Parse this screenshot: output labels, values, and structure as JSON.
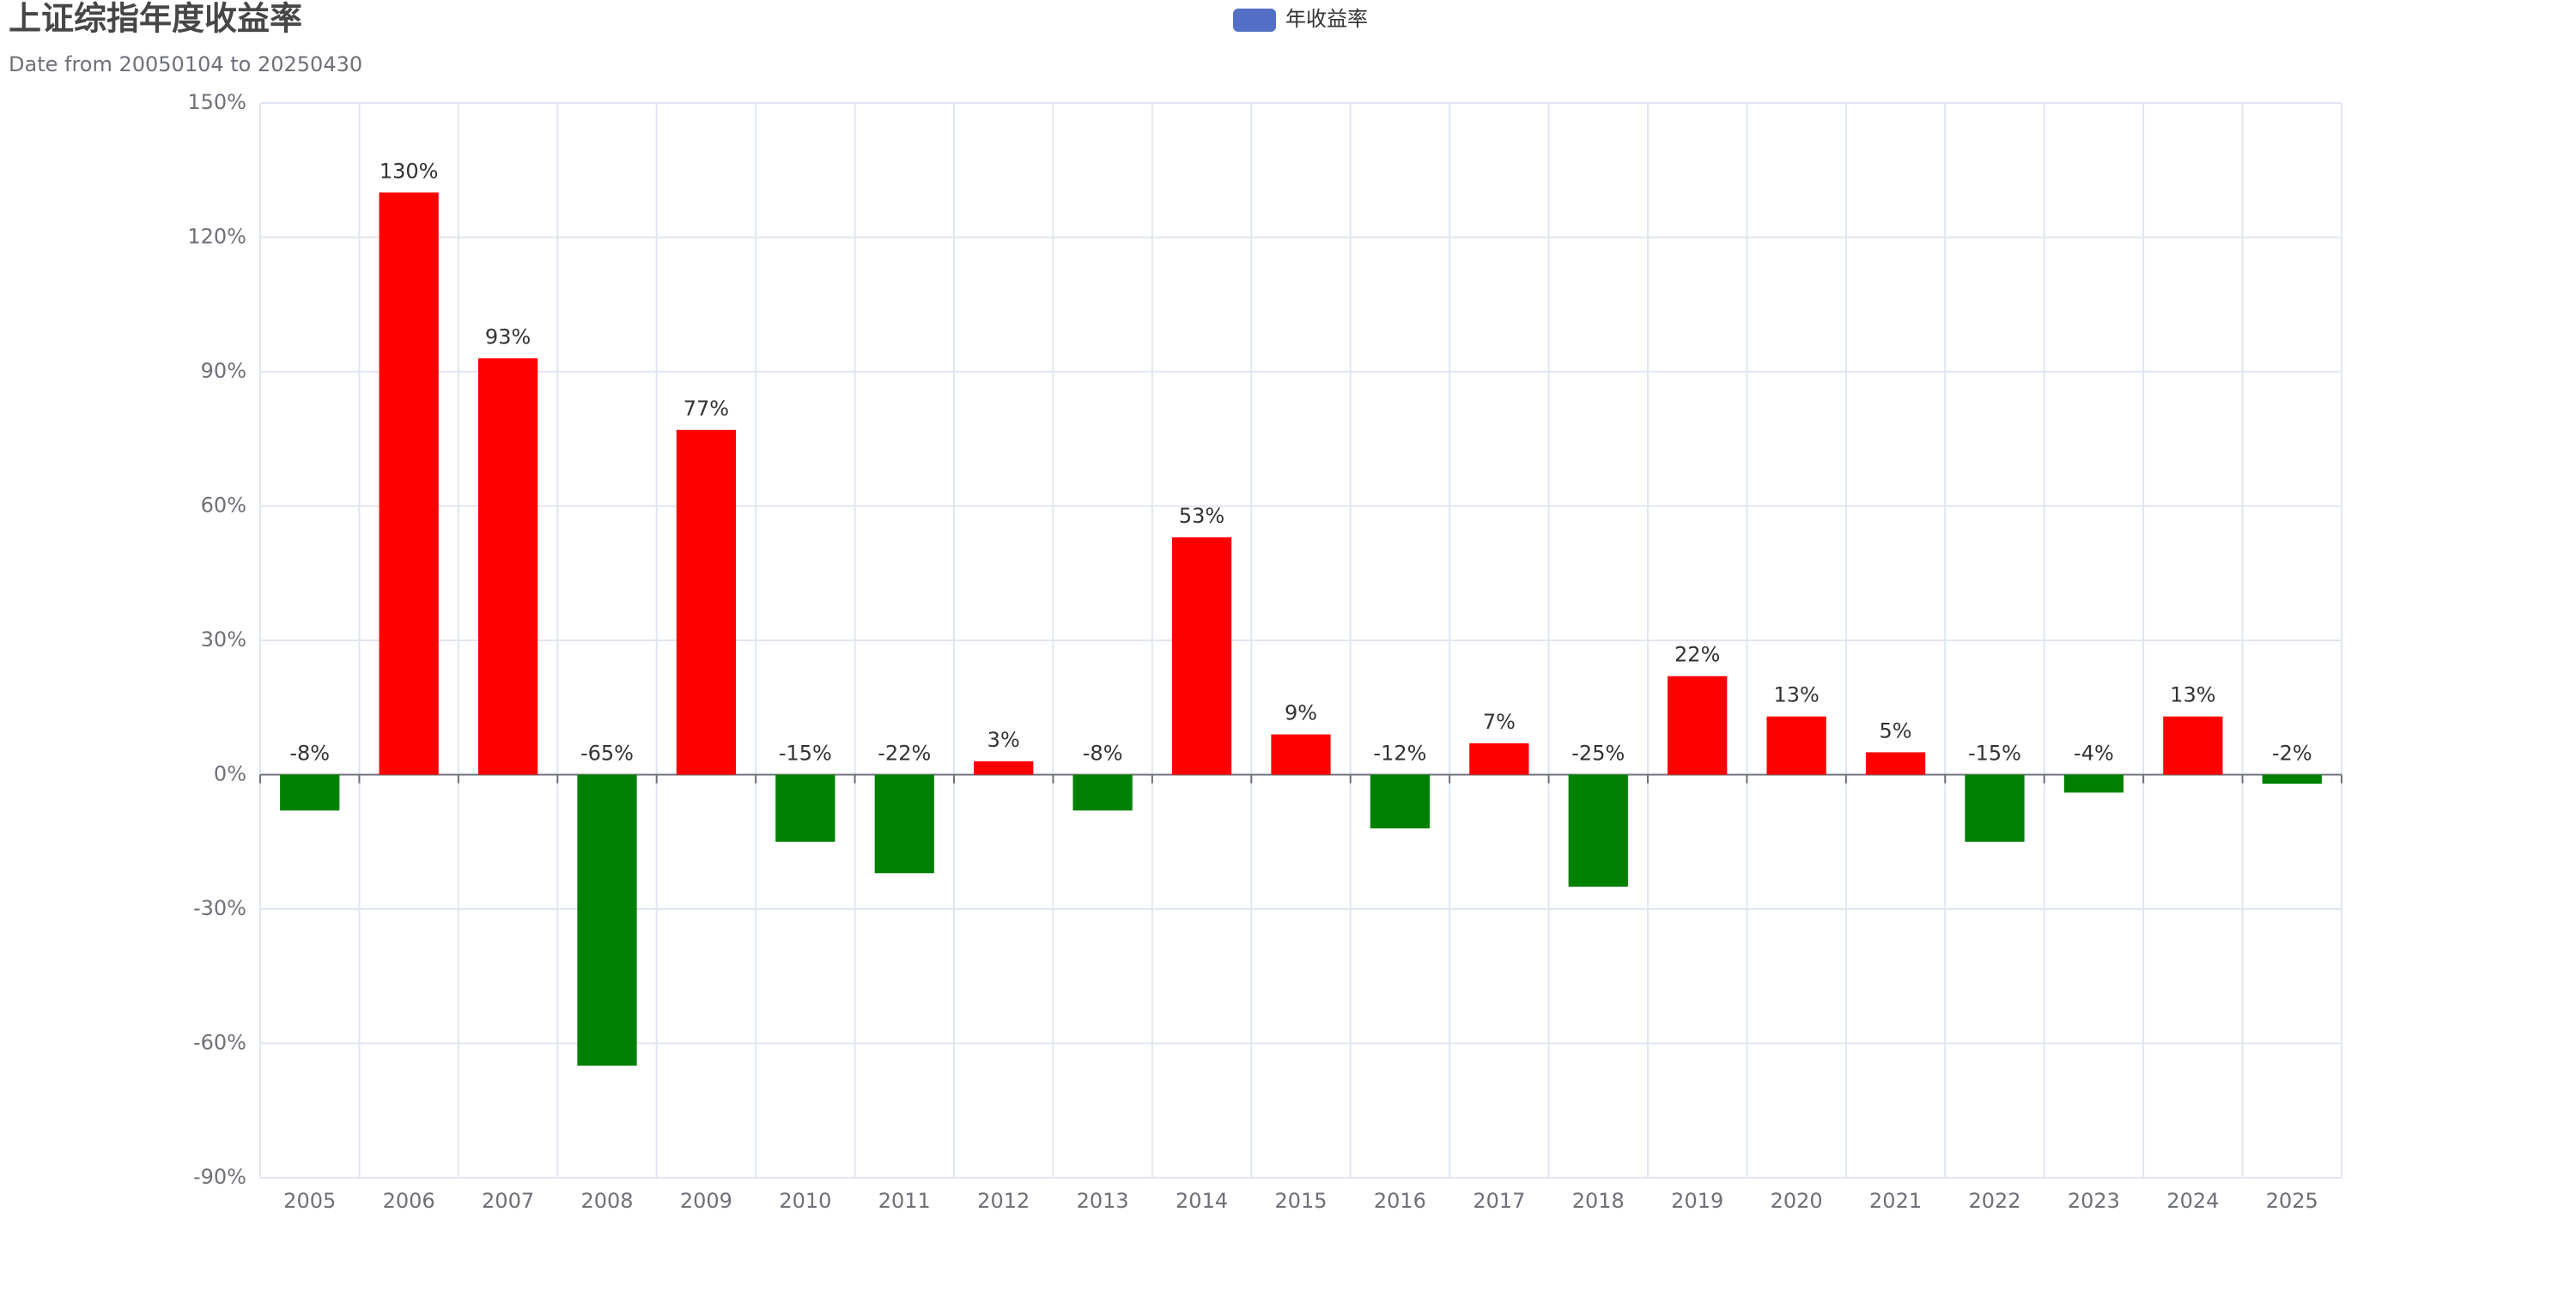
{
  "chart_data": {
    "type": "bar",
    "title": "上证综指年度收益率",
    "subtitle": "Date from 20050104 to 20250430",
    "legend": {
      "name": "年收益率",
      "color": "#5470c6",
      "position": "top"
    },
    "categories": [
      "2005",
      "2006",
      "2007",
      "2008",
      "2009",
      "2010",
      "2011",
      "2012",
      "2013",
      "2014",
      "2015",
      "2016",
      "2017",
      "2018",
      "2019",
      "2020",
      "2021",
      "2022",
      "2023",
      "2024",
      "2025"
    ],
    "values": [
      -8,
      130,
      93,
      -65,
      77,
      -15,
      -22,
      3,
      -8,
      53,
      9,
      -12,
      7,
      -25,
      22,
      13,
      5,
      -15,
      -4,
      13,
      -2
    ],
    "value_labels": [
      "-8%",
      "130%",
      "93%",
      "-65%",
      "77%",
      "-15%",
      "-22%",
      "3%",
      "-8%",
      "53%",
      "9%",
      "-12%",
      "7%",
      "-25%",
      "22%",
      "13%",
      "5%",
      "-15%",
      "-4%",
      "13%",
      "-2%"
    ],
    "positive_color": "#ff0000",
    "negative_color": "#008000",
    "ylim": [
      -90,
      150
    ],
    "yticks": [
      {
        "value": -90,
        "label": "-90%"
      },
      {
        "value": -60,
        "label": "-60%"
      },
      {
        "value": -30,
        "label": "-30%"
      },
      {
        "value": 0,
        "label": "0%"
      },
      {
        "value": 30,
        "label": "30%"
      },
      {
        "value": 60,
        "label": "60%"
      },
      {
        "value": 90,
        "label": "90%"
      },
      {
        "value": 120,
        "label": "120%"
      },
      {
        "value": 150,
        "label": "150%"
      }
    ],
    "grid": true
  }
}
